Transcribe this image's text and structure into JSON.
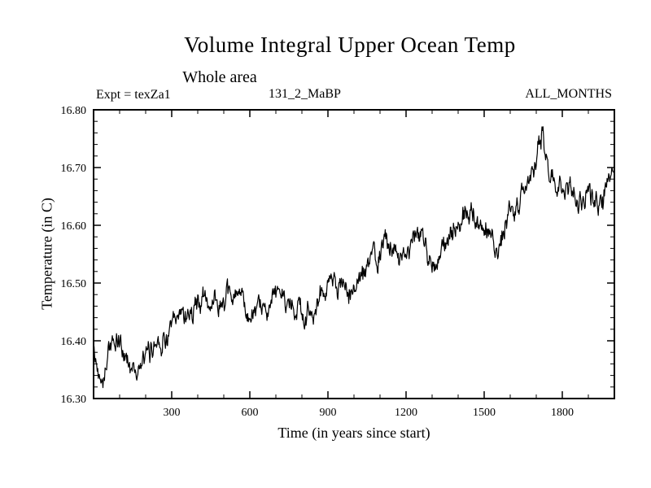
{
  "chart_data": {
    "type": "line",
    "title": "Volume Integral Upper Ocean Temp",
    "subtitle": "Whole area",
    "annotations": {
      "experiment": "Expt = texZa1",
      "center": "131_2_MaBP",
      "right": "ALL_MONTHS"
    },
    "xlabel": "Time (in years since start)",
    "ylabel": "Temperature (in C)",
    "x_range": [
      0,
      2000
    ],
    "y_range": [
      16.3,
      16.8
    ],
    "x_major_ticks": [
      300,
      600,
      900,
      1200,
      1500,
      1800
    ],
    "x_minor_step": 100,
    "y_major_ticks": [
      16.3,
      16.4,
      16.5,
      16.6,
      16.7,
      16.8
    ],
    "y_minor_step": 0.02,
    "y_tick_decimals": 2,
    "grid": false,
    "frame": true,
    "legend": "none",
    "line_color": "#000000",
    "series": [
      {
        "name": "upper-ocean-temperature",
        "sample_step_years": 2,
        "noise": {
          "seed": 42,
          "ar_coef": 0.78,
          "ar_input": 0.014,
          "white": 0.006
        },
        "trend_points": [
          [
            0,
            16.38
          ],
          [
            15,
            16.35
          ],
          [
            30,
            16.34
          ],
          [
            50,
            16.37
          ],
          [
            75,
            16.4
          ],
          [
            100,
            16.39
          ],
          [
            125,
            16.37
          ],
          [
            150,
            16.36
          ],
          [
            175,
            16.35
          ],
          [
            200,
            16.36
          ],
          [
            225,
            16.39
          ],
          [
            250,
            16.41
          ],
          [
            275,
            16.41
          ],
          [
            300,
            16.42
          ],
          [
            325,
            16.44
          ],
          [
            350,
            16.45
          ],
          [
            375,
            16.46
          ],
          [
            400,
            16.46
          ],
          [
            425,
            16.47
          ],
          [
            450,
            16.46
          ],
          [
            475,
            16.47
          ],
          [
            500,
            16.475
          ],
          [
            525,
            16.47
          ],
          [
            550,
            16.475
          ],
          [
            575,
            16.46
          ],
          [
            600,
            16.44
          ],
          [
            625,
            16.43
          ],
          [
            650,
            16.45
          ],
          [
            675,
            16.47
          ],
          [
            700,
            16.475
          ],
          [
            725,
            16.48
          ],
          [
            750,
            16.48
          ],
          [
            775,
            16.47
          ],
          [
            800,
            16.45
          ],
          [
            825,
            16.44
          ],
          [
            850,
            16.46
          ],
          [
            875,
            16.48
          ],
          [
            900,
            16.5
          ],
          [
            925,
            16.5
          ],
          [
            950,
            16.49
          ],
          [
            975,
            16.47
          ],
          [
            1000,
            16.49
          ],
          [
            1025,
            16.51
          ],
          [
            1050,
            16.52
          ],
          [
            1075,
            16.54
          ],
          [
            1100,
            16.55
          ],
          [
            1125,
            16.58
          ],
          [
            1150,
            16.56
          ],
          [
            1175,
            16.55
          ],
          [
            1200,
            16.56
          ],
          [
            1225,
            16.57
          ],
          [
            1250,
            16.58
          ],
          [
            1275,
            16.57
          ],
          [
            1300,
            16.55
          ],
          [
            1325,
            16.54
          ],
          [
            1350,
            16.56
          ],
          [
            1375,
            16.58
          ],
          [
            1400,
            16.6
          ],
          [
            1425,
            16.62
          ],
          [
            1450,
            16.62
          ],
          [
            1475,
            16.61
          ],
          [
            1500,
            16.6
          ],
          [
            1525,
            16.58
          ],
          [
            1550,
            16.57
          ],
          [
            1575,
            16.59
          ],
          [
            1600,
            16.62
          ],
          [
            1625,
            16.64
          ],
          [
            1650,
            16.65
          ],
          [
            1675,
            16.67
          ],
          [
            1700,
            16.71
          ],
          [
            1715,
            16.74
          ],
          [
            1725,
            16.75
          ],
          [
            1740,
            16.71
          ],
          [
            1760,
            16.69
          ],
          [
            1775,
            16.68
          ],
          [
            1800,
            16.68
          ],
          [
            1825,
            16.66
          ],
          [
            1850,
            16.65
          ],
          [
            1875,
            16.65
          ],
          [
            1900,
            16.66
          ],
          [
            1925,
            16.65
          ],
          [
            1950,
            16.64
          ],
          [
            1975,
            16.66
          ],
          [
            2000,
            16.68
          ]
        ]
      }
    ]
  }
}
